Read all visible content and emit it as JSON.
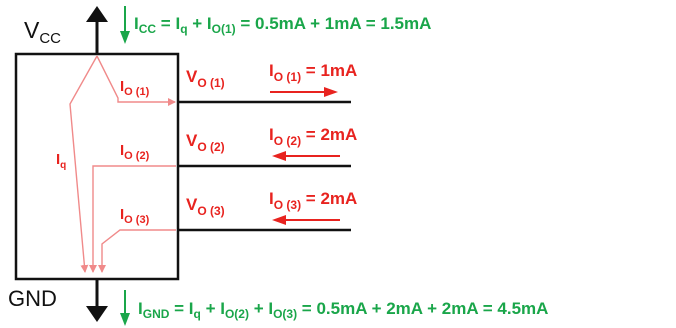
{
  "rails": {
    "vcc_main": "V",
    "vcc_sub": "CC",
    "gnd": "GND"
  },
  "equations": {
    "icc": {
      "lhs_main": "I",
      "lhs_sub": "CC",
      "eq1": " = I",
      "iq_sub": "q",
      "plus1": " + I",
      "io_sub": "O(1)",
      "rest": " = 0.5mA + 1mA = 1.5mA"
    },
    "ignd": {
      "lhs_main": "I",
      "lhs_sub": "GND",
      "eq1": " = I",
      "iq_sub": "q",
      "plus1": " + I",
      "io2_sub": "O(2)",
      "plus2": " + I",
      "io3_sub": "O(3)",
      "rest": " = 0.5mA + 2mA + 2mA = 4.5mA"
    }
  },
  "internal": {
    "iq_main": "I",
    "iq_sub": "q",
    "branches": [
      {
        "main": "I",
        "sub": "O (1)"
      },
      {
        "main": "I",
        "sub": "O (2)"
      },
      {
        "main": "I",
        "sub": "O (3)"
      }
    ]
  },
  "outputs": [
    {
      "v_main": "V",
      "v_sub": "O (1)",
      "i_main": "I",
      "i_sub": "O (1)",
      "i_value": " = 1mA",
      "direction": "out"
    },
    {
      "v_main": "V",
      "v_sub": "O (2)",
      "i_main": "I",
      "i_sub": "O (2)",
      "i_value": " = 2mA",
      "direction": "in"
    },
    {
      "v_main": "V",
      "v_sub": "O (3)",
      "i_main": "I",
      "i_sub": "O (3)",
      "i_value": " = 2mA",
      "direction": "in"
    }
  ],
  "colors": {
    "green": "#1aa64a",
    "red": "#e8231f",
    "pink": "#f08a8a",
    "black": "#111111"
  }
}
